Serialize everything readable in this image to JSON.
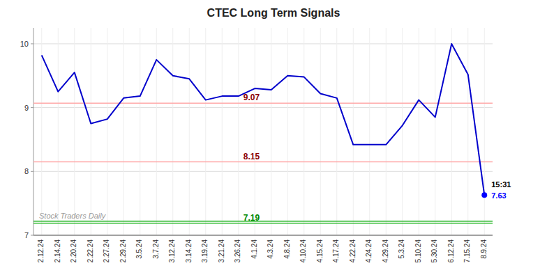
{
  "chart_data": {
    "type": "line",
    "title": "CTEC Long Term Signals",
    "categories": [
      "2.12.24",
      "2.14.24",
      "2.20.24",
      "2.22.24",
      "2.27.24",
      "2.29.24",
      "3.5.24",
      "3.7.24",
      "3.12.24",
      "3.14.24",
      "3.19.24",
      "3.21.24",
      "3.26.24",
      "4.1.24",
      "4.3.24",
      "4.8.24",
      "4.10.24",
      "4.15.24",
      "4.17.24",
      "4.22.24",
      "4.24.24",
      "4.29.24",
      "5.3.24",
      "5.10.24",
      "5.30.24",
      "6.12.24",
      "7.15.24",
      "8.9.24"
    ],
    "values": [
      9.82,
      9.25,
      9.55,
      8.75,
      8.82,
      9.15,
      9.18,
      9.75,
      9.5,
      9.45,
      9.12,
      9.18,
      9.18,
      9.3,
      9.28,
      9.5,
      9.48,
      9.22,
      9.15,
      8.42,
      8.42,
      8.42,
      8.72,
      9.12,
      8.85,
      10.0,
      9.52,
      7.63
    ],
    "color": "#0000cc",
    "ylim": [
      7.0,
      10.25
    ],
    "yticks": [
      7,
      8,
      9,
      10
    ],
    "grid": true,
    "hlines": [
      {
        "value": 9.07,
        "color": "#ffaaaa",
        "label": "9.07",
        "label_color": "#8b0000"
      },
      {
        "value": 8.15,
        "color": "#ffaaaa",
        "label": "8.15",
        "label_color": "#8b0000"
      },
      {
        "value": 7.19,
        "color": "#00aa00",
        "label": "7.19",
        "label_color": "#008800"
      },
      {
        "value": 7.22,
        "color": "#00aa00"
      }
    ],
    "annotations": [
      {
        "text": "15:31",
        "color": "#000000"
      },
      {
        "text": "7.63",
        "color": "#0000ff"
      }
    ],
    "watermark": "Stock Traders Daily"
  }
}
